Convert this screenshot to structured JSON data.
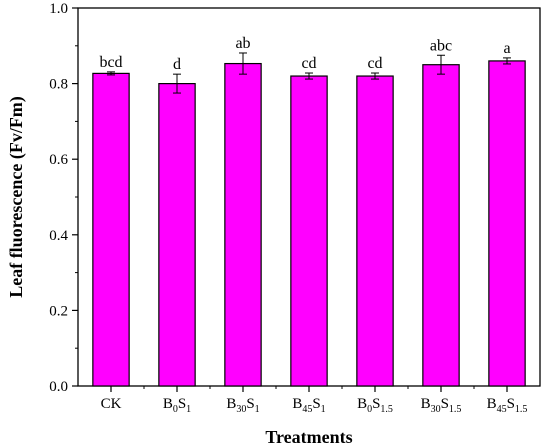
{
  "chart_data": {
    "type": "bar",
    "title": "",
    "xlabel": "Treatments",
    "ylabel": "Leaf fluorescence (Fv/Fm)",
    "ylim": [
      0.0,
      1.0
    ],
    "yticks": [
      "0.0",
      "0.2",
      "0.4",
      "0.6",
      "0.8",
      "1.0"
    ],
    "grid": false,
    "bar_color": "#ff00ff",
    "categories": [
      {
        "base": "CK",
        "sub1": "",
        "mid": "",
        "sub2": ""
      },
      {
        "base": "B",
        "sub1": "0",
        "mid": "S",
        "sub2": "1"
      },
      {
        "base": "B",
        "sub1": "30",
        "mid": "S",
        "sub2": "1"
      },
      {
        "base": "B",
        "sub1": "45",
        "mid": "S",
        "sub2": "1"
      },
      {
        "base": "B",
        "sub1": "0",
        "mid": "S",
        "sub2": "1.5"
      },
      {
        "base": "B",
        "sub1": "30",
        "mid": "S",
        "sub2": "1.5"
      },
      {
        "base": "B",
        "sub1": "45",
        "mid": "S",
        "sub2": "1.5"
      }
    ],
    "values": [
      0.827,
      0.8,
      0.853,
      0.82,
      0.82,
      0.85,
      0.86
    ],
    "errors": [
      0.004,
      0.025,
      0.028,
      0.008,
      0.008,
      0.025,
      0.008
    ],
    "significance": [
      "bcd",
      "d",
      "ab",
      "cd",
      "cd",
      "abc",
      "a"
    ]
  }
}
